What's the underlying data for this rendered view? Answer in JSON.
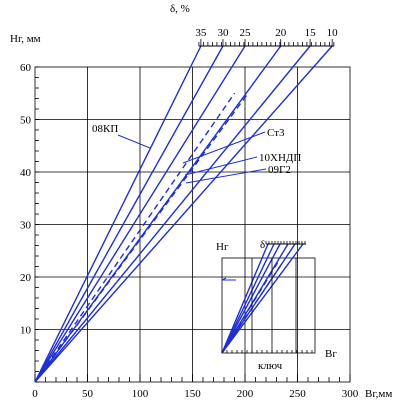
{
  "chart_data": {
    "type": "line",
    "xlabel": "Вг,мм",
    "ylabel": "Нг, мм",
    "xlim": [
      0,
      300
    ],
    "ylim": [
      0,
      60
    ],
    "x_ticks": [
      "0",
      "50",
      "100",
      "150",
      "200",
      "250",
      "300"
    ],
    "y_ticks": [
      "10",
      "20",
      "30",
      "40",
      "50",
      "60"
    ],
    "top_scale": {
      "label": "δ, %",
      "ticks": [
        "35",
        "30",
        "25",
        "20",
        "15",
        "10"
      ],
      "y": 64,
      "x_positions": [
        158,
        179,
        200,
        234,
        262,
        283
      ]
    },
    "grid": true,
    "series": [
      {
        "style": "solid",
        "points": [
          [
            0,
            0
          ],
          [
            158,
            64
          ]
        ]
      },
      {
        "style": "solid",
        "points": [
          [
            0,
            0
          ],
          [
            179,
            64
          ]
        ]
      },
      {
        "style": "solid",
        "points": [
          [
            0,
            0
          ],
          [
            200,
            64
          ]
        ]
      },
      {
        "style": "solid",
        "points": [
          [
            0,
            0
          ],
          [
            234,
            64
          ]
        ]
      },
      {
        "style": "solid",
        "points": [
          [
            0,
            0
          ],
          [
            262,
            64
          ]
        ]
      },
      {
        "style": "solid",
        "points": [
          [
            0,
            0
          ],
          [
            283,
            64
          ]
        ]
      },
      {
        "style": "dashed",
        "points": [
          [
            0,
            0
          ],
          [
            190,
            55
          ]
        ]
      },
      {
        "style": "dashed",
        "points": [
          [
            0,
            0
          ],
          [
            203,
            55
          ]
        ]
      }
    ],
    "annotations": [
      {
        "text": "08КП"
      },
      {
        "text": "Ст3"
      },
      {
        "text": "10ХНДП"
      },
      {
        "text": "09Г2"
      }
    ],
    "inset": {
      "label_y": "Нг",
      "label_x": "Вг",
      "label_top": "δ",
      "label_bottom": "ключ"
    }
  }
}
